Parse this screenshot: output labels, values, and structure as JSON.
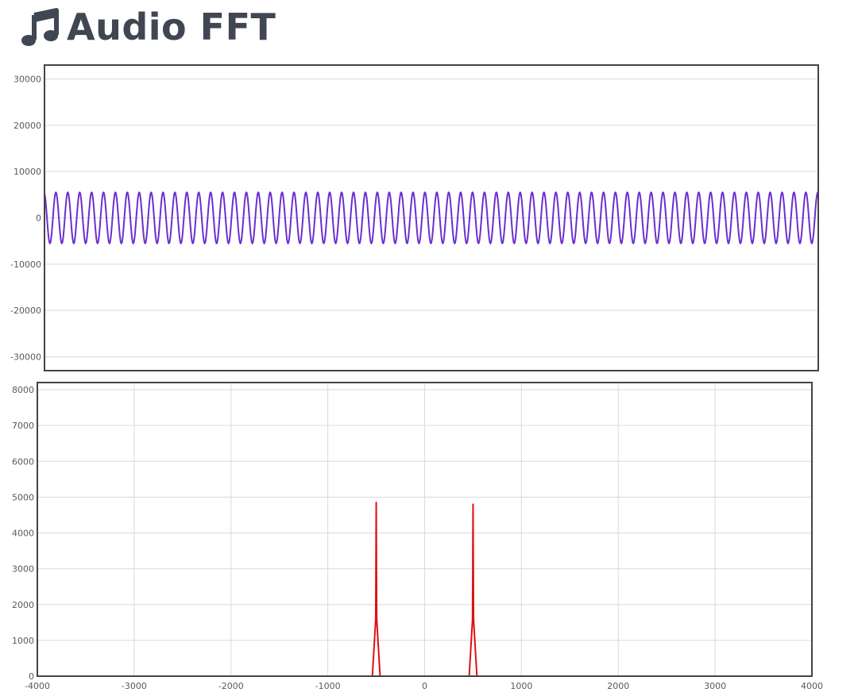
{
  "app": {
    "title": "Audio FFT",
    "icon": "music-note-icon"
  },
  "colors": {
    "title": "#404652",
    "waveform": "#6b2fd0",
    "spectrum": "#e01010",
    "grid": "#d9d9d9",
    "frame": "#444444"
  },
  "chart_data": [
    {
      "id": "waveform",
      "type": "line",
      "title": "",
      "xlabel": "",
      "ylabel": "",
      "ylim": [
        -33000,
        33000
      ],
      "yticks": [
        30000,
        20000,
        10000,
        0,
        -10000,
        -20000,
        -30000
      ],
      "ytick_labels": [
        "30000",
        "20000",
        "10000",
        "0",
        "-10000",
        "-20000",
        "-30000"
      ],
      "grid": true,
      "series": [
        {
          "amplitude": 5500,
          "cycles": 65,
          "baseline": 0,
          "phase_deg": 105
        }
      ]
    },
    {
      "id": "spectrum",
      "type": "line",
      "title": "",
      "xlabel": "",
      "ylabel": "",
      "xlim": [
        -4000,
        4000
      ],
      "ylim": [
        0,
        8000
      ],
      "xticks": [
        -4000,
        -3000,
        -2000,
        -1000,
        0,
        1000,
        2000,
        3000,
        4000
      ],
      "xtick_labels": [
        "-4000",
        "-3000",
        "-2000",
        "-1000",
        "0",
        "1000",
        "2000",
        "3000",
        "4000"
      ],
      "yticks": [
        0,
        1000,
        2000,
        3000,
        4000,
        5000,
        6000,
        7000,
        8000
      ],
      "ytick_labels": [
        "0",
        "1000",
        "2000",
        "3000",
        "4000",
        "5000",
        "6000",
        "7000",
        "8000"
      ],
      "grid": true,
      "series": [
        {
          "x": [
            -4000,
            -540,
            -505,
            -500,
            -495,
            -460,
            460,
            495,
            500,
            505,
            540,
            4000
          ],
          "y": [
            0,
            0,
            1600,
            4850,
            1600,
            0,
            0,
            1600,
            4800,
            1600,
            0,
            0
          ]
        }
      ]
    }
  ]
}
